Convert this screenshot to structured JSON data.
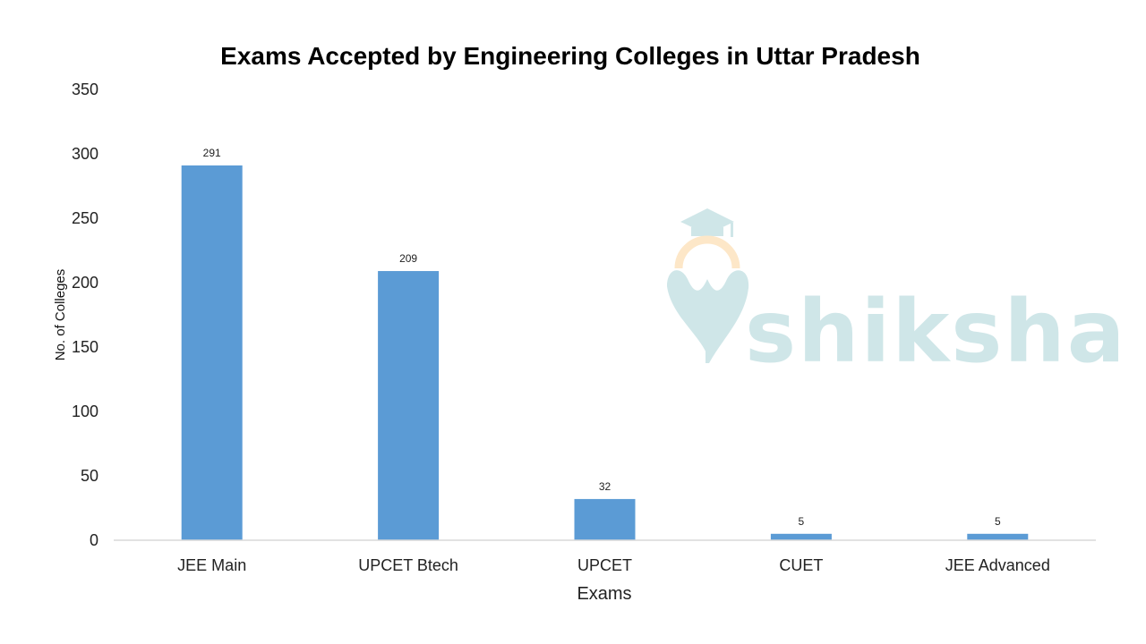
{
  "chart_data": {
    "type": "bar",
    "title": "Exams Accepted by Engineering Colleges in Uttar Pradesh",
    "xlabel": "Exams",
    "ylabel": "No. of Colleges",
    "categories": [
      "JEE Main",
      "UPCET Btech",
      "UPCET",
      "CUET",
      "JEE Advanced"
    ],
    "values": [
      291,
      209,
      32,
      5,
      5
    ],
    "data_labels": [
      "291",
      "209",
      "32",
      "5",
      "5"
    ],
    "ylim": [
      0,
      350
    ],
    "yticks": [
      0,
      50,
      100,
      150,
      200,
      250,
      300,
      350
    ],
    "grid": false,
    "legend": "none",
    "bar_color": "#5b9bd5",
    "axis_color": "#d9d9d9"
  },
  "watermark": {
    "text": "shiksha",
    "color": "#cfe6e8",
    "accent_color": "#fde7c8",
    "icon": "graduation-cap-pen-nib-icon"
  }
}
